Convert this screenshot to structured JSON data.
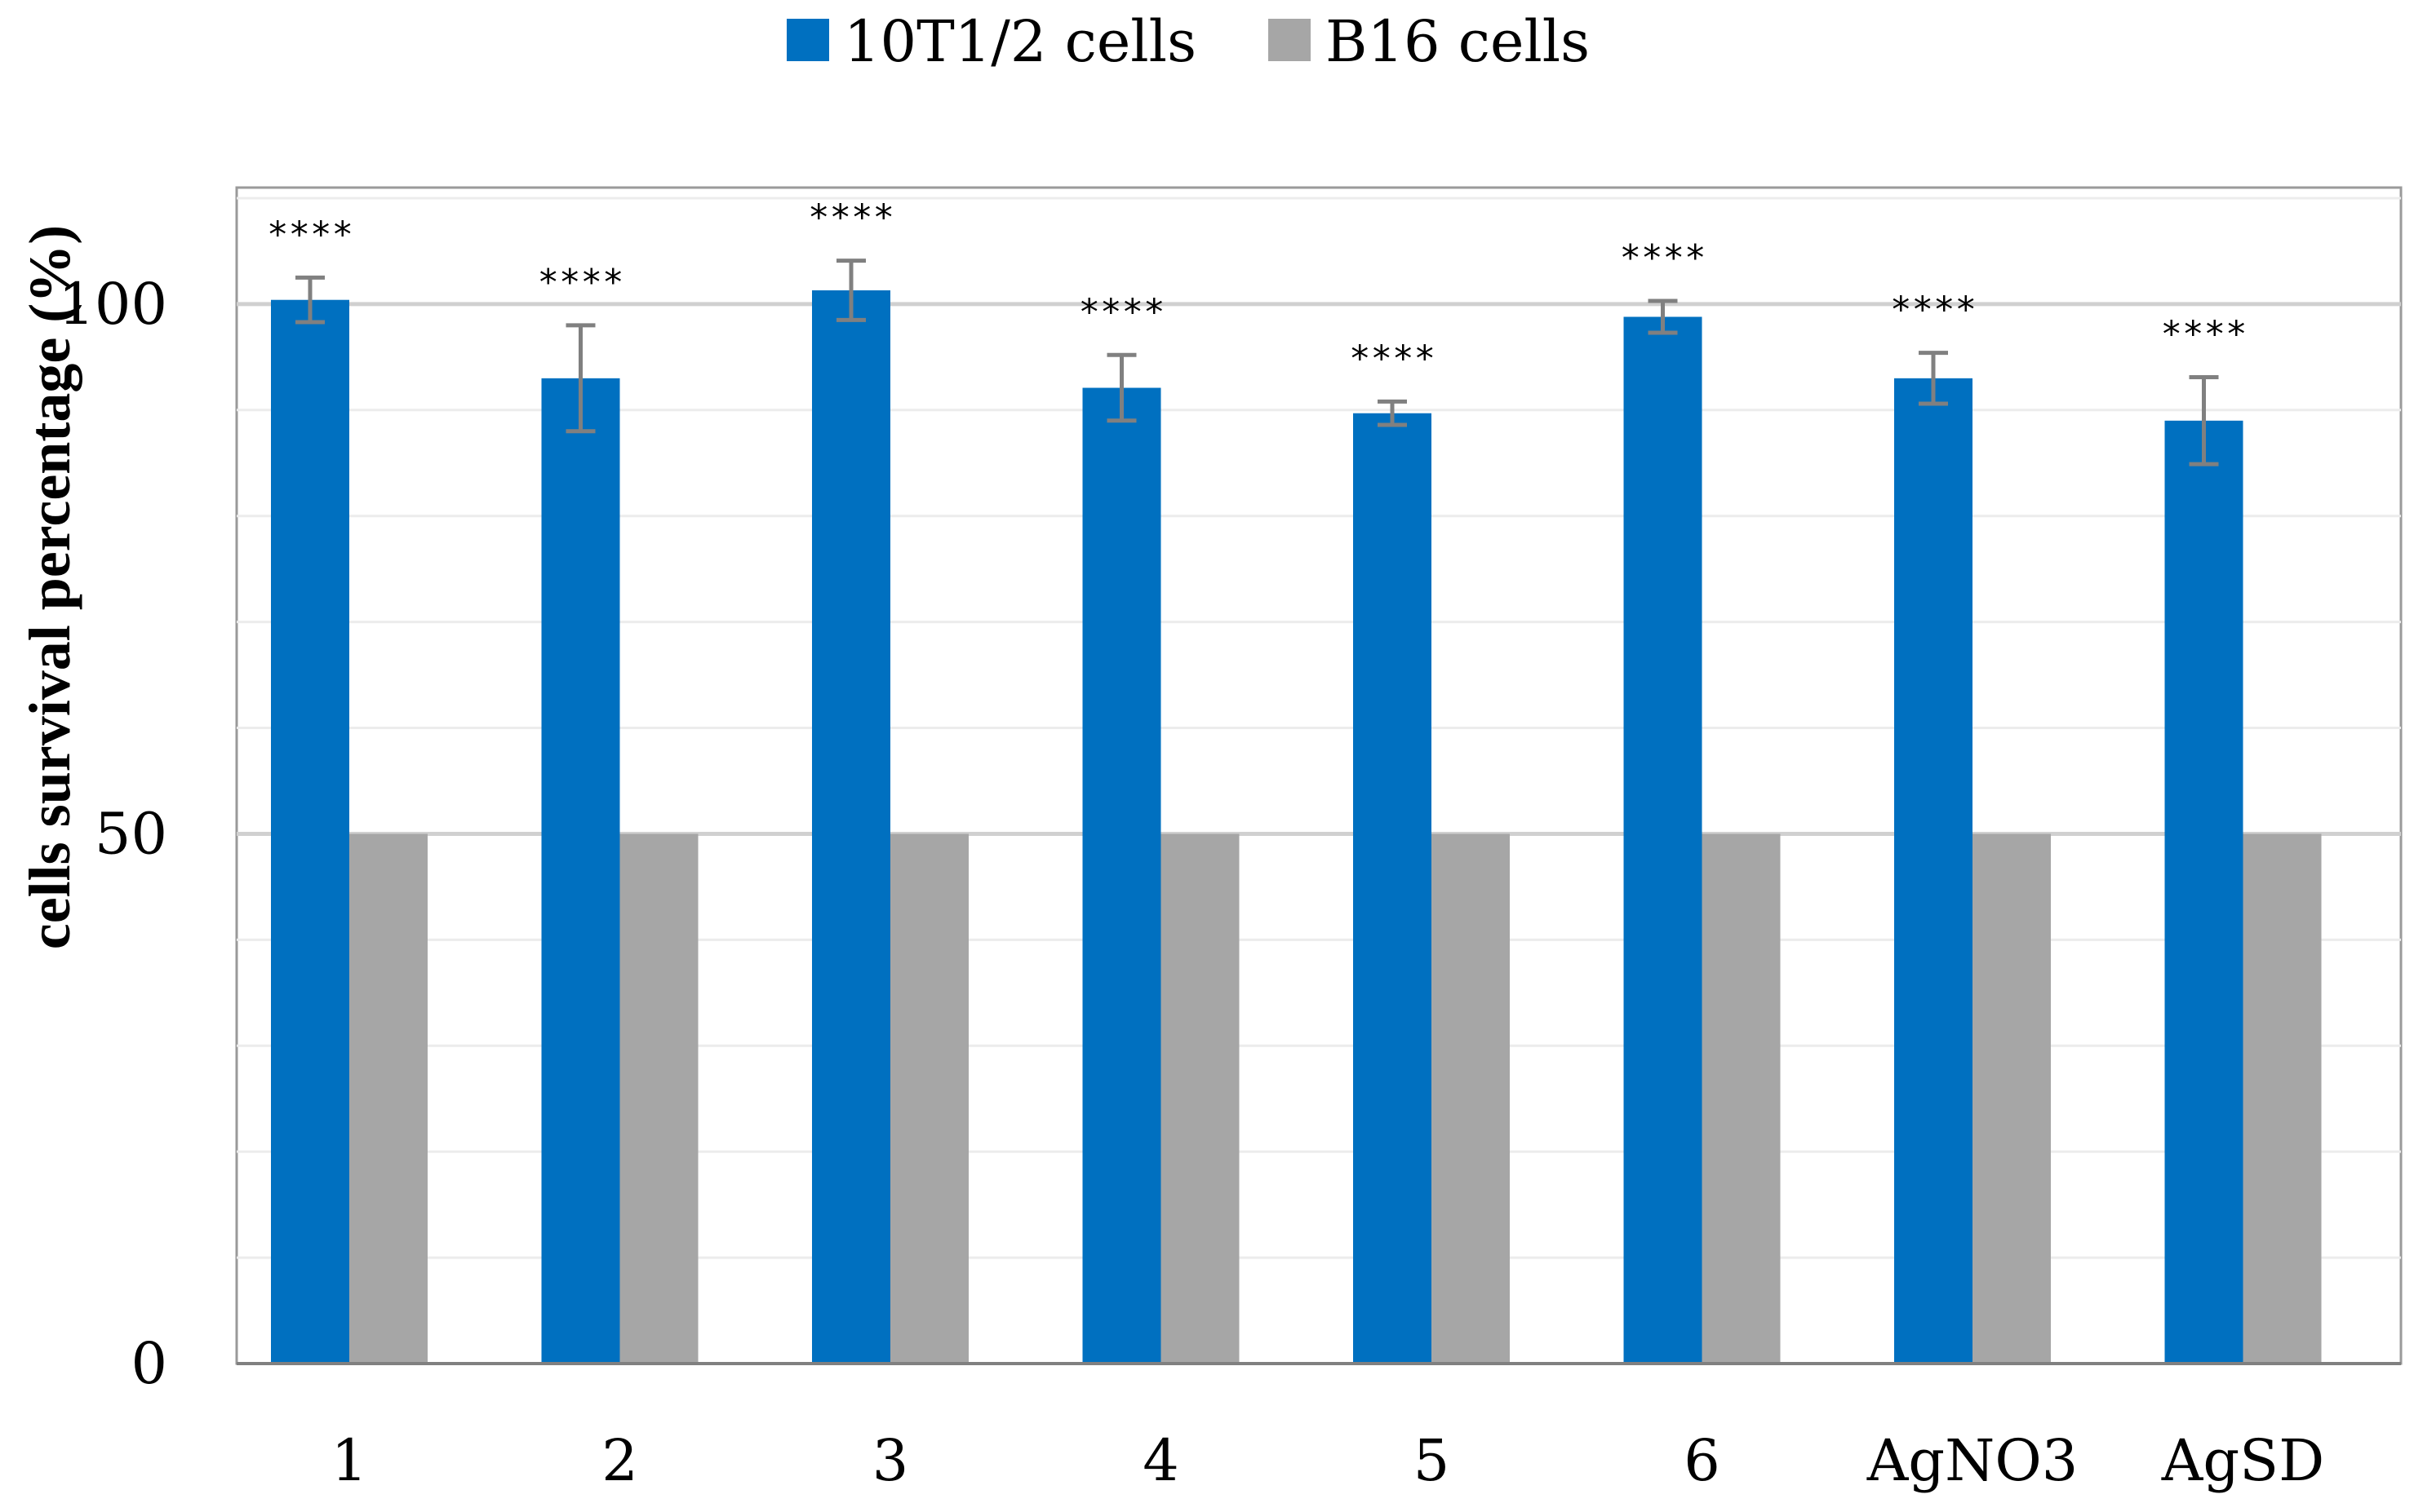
{
  "chart_data": {
    "type": "bar",
    "title": "",
    "xlabel": "",
    "ylabel": "cells survival percentage (%)",
    "ylim": [
      0,
      111
    ],
    "yticks": [
      0,
      50,
      100
    ],
    "y_minor_step": 10,
    "grid": true,
    "legend_position": "top-center",
    "categories": [
      "1",
      "2",
      "3",
      "4",
      "5",
      "6",
      "AgNO3",
      "AgSD"
    ],
    "series": [
      {
        "name": "10T1/2 cells",
        "color": "#0070C0",
        "values": [
          100.4,
          93.0,
          101.3,
          92.1,
          89.7,
          98.8,
          93.0,
          89.0
        ],
        "errors": [
          2.1,
          5.0,
          2.8,
          3.1,
          1.1,
          1.5,
          2.4,
          4.1
        ],
        "annotations": [
          "****",
          "****",
          "****",
          "****",
          "****",
          "****",
          "****",
          "****"
        ]
      },
      {
        "name": "B16 cells",
        "color": "#A6A6A6",
        "values": [
          50,
          50,
          50,
          50,
          50,
          50,
          50,
          50
        ]
      }
    ]
  }
}
